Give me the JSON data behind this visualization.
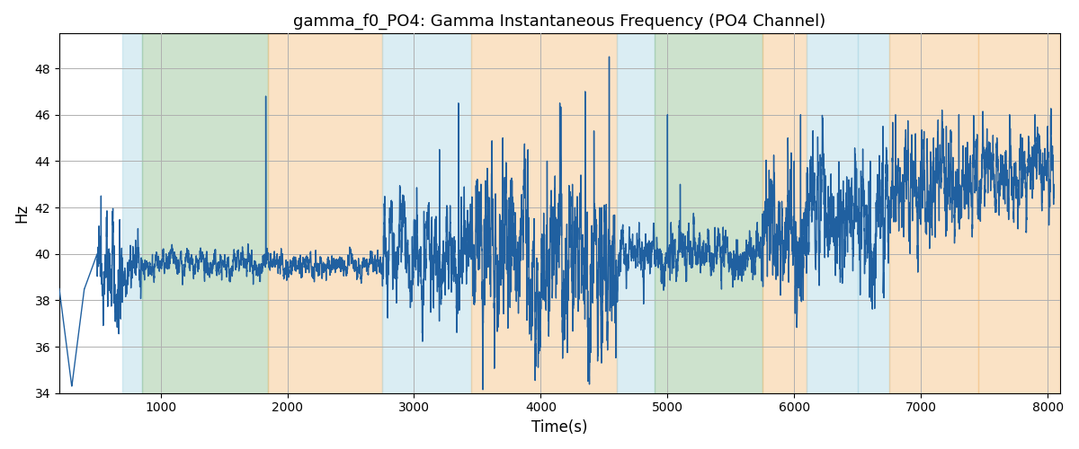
{
  "title": "gamma_f0_PO4: Gamma Instantaneous Frequency (PO4 Channel)",
  "xlabel": "Time(s)",
  "ylabel": "Hz",
  "xlim": [
    200,
    8100
  ],
  "ylim": [
    34,
    49.5
  ],
  "yticks": [
    34,
    36,
    38,
    40,
    42,
    44,
    46,
    48
  ],
  "xticks": [
    1000,
    2000,
    3000,
    4000,
    5000,
    6000,
    7000,
    8000
  ],
  "line_color": "#2060a0",
  "line_width": 1.0,
  "bg_color": "#ffffff",
  "grid_color": "#b0b0b0",
  "colored_bands": [
    {
      "xmin": 700,
      "xmax": 850,
      "color": "#add8e6",
      "alpha": 0.45
    },
    {
      "xmin": 850,
      "xmax": 1850,
      "color": "#90c090",
      "alpha": 0.45
    },
    {
      "xmin": 1850,
      "xmax": 2750,
      "color": "#f5c080",
      "alpha": 0.45
    },
    {
      "xmin": 2750,
      "xmax": 3450,
      "color": "#add8e6",
      "alpha": 0.45
    },
    {
      "xmin": 3450,
      "xmax": 4600,
      "color": "#f5c080",
      "alpha": 0.45
    },
    {
      "xmin": 4600,
      "xmax": 4900,
      "color": "#add8e6",
      "alpha": 0.45
    },
    {
      "xmin": 4900,
      "xmax": 5750,
      "color": "#90c090",
      "alpha": 0.45
    },
    {
      "xmin": 5750,
      "xmax": 6100,
      "color": "#f5c080",
      "alpha": 0.45
    },
    {
      "xmin": 6100,
      "xmax": 6500,
      "color": "#add8e6",
      "alpha": 0.45
    },
    {
      "xmin": 6500,
      "xmax": 6750,
      "color": "#add8e6",
      "alpha": 0.45
    },
    {
      "xmin": 6750,
      "xmax": 7450,
      "color": "#f5c080",
      "alpha": 0.45
    },
    {
      "xmin": 7450,
      "xmax": 8100,
      "color": "#f5c080",
      "alpha": 0.45
    }
  ],
  "seed": 42,
  "n_points": 7900,
  "t_start": 200,
  "t_end": 8050
}
